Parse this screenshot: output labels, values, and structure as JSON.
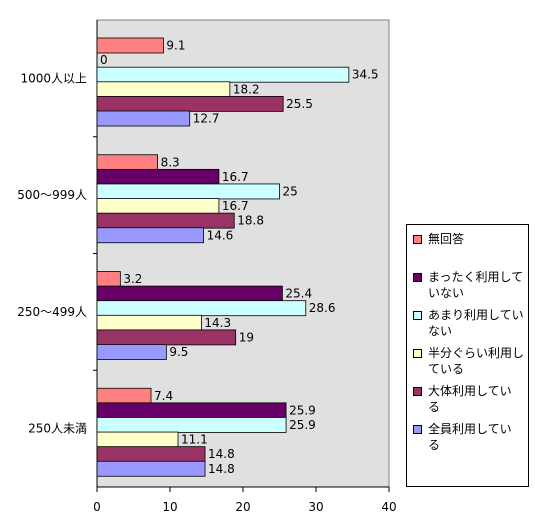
{
  "chart_data": {
    "type": "bar",
    "orientation": "horizontal",
    "categories": [
      "1000人以上",
      "500〜999人",
      "250〜499人",
      "250人未満"
    ],
    "series": [
      {
        "name": "無回答",
        "color": "#ff8080",
        "values": [
          9.1,
          8.3,
          3.2,
          7.4
        ]
      },
      {
        "name": "まったく利用していない",
        "color": "#660066",
        "values": [
          0,
          16.7,
          25.4,
          25.9
        ]
      },
      {
        "name": "あまり利用していない",
        "color": "#ccffff",
        "values": [
          34.5,
          25,
          28.6,
          25.9
        ]
      },
      {
        "name": "半分ぐらい利用している",
        "color": "#ffffcc",
        "values": [
          18.2,
          16.7,
          14.3,
          11.1
        ]
      },
      {
        "name": "大体利用している",
        "color": "#993366",
        "values": [
          25.5,
          18.8,
          19,
          14.8
        ]
      },
      {
        "name": "全員利用している",
        "color": "#9999ff",
        "values": [
          12.7,
          14.6,
          9.5,
          14.8
        ]
      }
    ],
    "data_labels": [
      [
        "9.1",
        "0",
        "34.5",
        "18.2",
        "25.5",
        "12.7"
      ],
      [
        "8.3",
        "16.7",
        "25",
        "16.7",
        "18.8",
        "14.6"
      ],
      [
        "3.2",
        "25.4",
        "28.6",
        "14.3",
        "19",
        "9.5"
      ],
      [
        "7.4",
        "25.9",
        "25.9",
        "11.1",
        "14.8",
        "14.8"
      ]
    ],
    "xlim": [
      0,
      40
    ],
    "xticks": [
      0,
      10,
      20,
      30,
      40
    ],
    "plot_background": "#e0e0e0",
    "grid": false,
    "legend_position": "right",
    "legend_labels": [
      [
        "無回答"
      ],
      [
        "まったく利用して",
        "いない"
      ],
      [
        "あまり利用してい",
        "ない"
      ],
      [
        "半分ぐらい利用し",
        "ている"
      ],
      [
        "大体利用してい",
        "る"
      ],
      [
        "全員利用してい",
        "る"
      ]
    ]
  }
}
